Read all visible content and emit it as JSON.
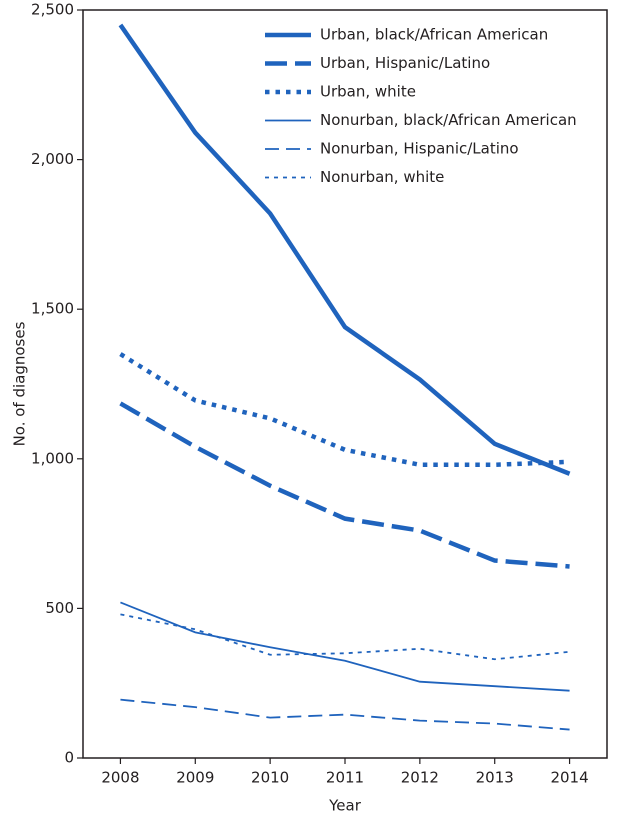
{
  "chart_data": {
    "type": "line",
    "x_label": "Year",
    "y_label": "No. of diagnoses",
    "categories": [
      "2008",
      "2009",
      "2010",
      "2011",
      "2012",
      "2013",
      "2014"
    ],
    "ylim": [
      0,
      2500
    ],
    "yticks": [
      0,
      500,
      {
        "value": 1000,
        "label": "1,000"
      },
      {
        "value": 1500,
        "label": "1,500"
      },
      {
        "value": 2000,
        "label": "2,000"
      },
      {
        "value": 2500,
        "label": "2,500"
      }
    ],
    "grid": false,
    "legend": "top-right",
    "series": [
      {
        "name": "Urban, black/African American",
        "color": "#1f63bd",
        "style": "solid",
        "weight": "heavy",
        "values": [
          2450,
          2090,
          1820,
          1440,
          1265,
          1050,
          950
        ]
      },
      {
        "name": "Urban, Hispanic/Latino",
        "color": "#1f63bd",
        "style": "dashed",
        "weight": "heavy",
        "values": [
          1185,
          1040,
          910,
          800,
          760,
          660,
          640
        ]
      },
      {
        "name": "Urban, white",
        "color": "#1f63bd",
        "style": "dotted",
        "weight": "heavy",
        "values": [
          1350,
          1195,
          1135,
          1030,
          980,
          980,
          990
        ]
      },
      {
        "name": "Nonurban, black/African American",
        "color": "#1f63bd",
        "style": "solid",
        "weight": "light",
        "values": [
          520,
          420,
          370,
          325,
          255,
          240,
          225
        ]
      },
      {
        "name": "Nonurban, Hispanic/Latino",
        "color": "#1f63bd",
        "style": "dashed",
        "weight": "light",
        "values": [
          195,
          170,
          135,
          145,
          125,
          115,
          95
        ]
      },
      {
        "name": "Nonurban, white",
        "color": "#1f63bd",
        "style": "dotted",
        "weight": "light",
        "values": [
          480,
          430,
          345,
          350,
          365,
          330,
          355
        ]
      }
    ]
  }
}
